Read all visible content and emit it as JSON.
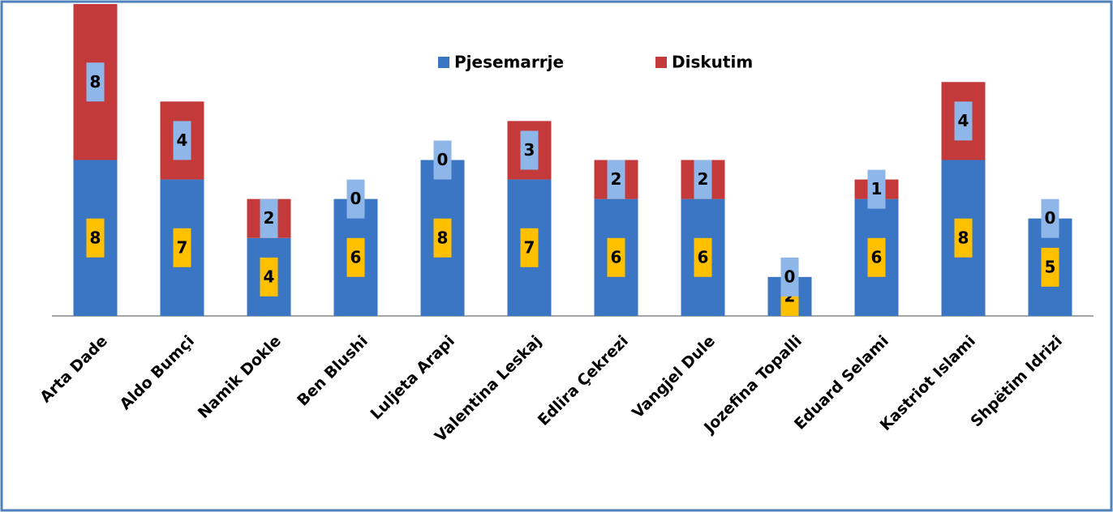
{
  "chart_data": {
    "type": "stacked_bar",
    "categories": [
      "Arta Dade",
      "Aldo Bumçi",
      "Namik Dokle",
      "Ben Blushi",
      "Luljeta Arapi",
      "Valentina Leskaj",
      "Edlira Çekrezi",
      "Vangjel Dule",
      "Jozefina Topalli",
      "Eduard Selami",
      "Kastriot Islami",
      "Shpëtim Idrizi"
    ],
    "series": [
      {
        "name": "Pjesemarrje",
        "color": "#3a76c4",
        "label_color": "#ffc000",
        "values": [
          8,
          7,
          4,
          6,
          8,
          7,
          6,
          6,
          2,
          6,
          8,
          5
        ]
      },
      {
        "name": "Diskutim",
        "color": "#c43a3a",
        "label_color": "#8fb6e8",
        "values": [
          8,
          4,
          2,
          0,
          0,
          3,
          2,
          2,
          0,
          1,
          4,
          0
        ]
      }
    ],
    "ylim": [
      0,
      16
    ],
    "legend": "top"
  }
}
